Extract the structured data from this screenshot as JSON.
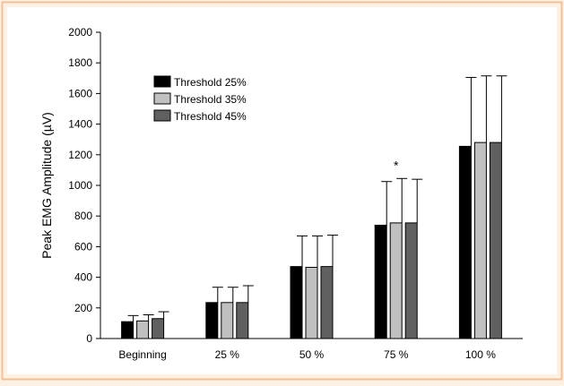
{
  "chart_data": {
    "type": "bar",
    "title": "",
    "xlabel": "",
    "ylabel": "Peak EMG Amplitude (µV)",
    "categories": [
      "Beginning",
      "25 %",
      "50 %",
      "75 %",
      "100 %"
    ],
    "ylim": [
      0,
      2000
    ],
    "yticks": [
      0,
      200,
      400,
      600,
      800,
      1000,
      1200,
      1400,
      1600,
      1800,
      2000
    ],
    "grid": false,
    "legend_position": "top-left",
    "series": [
      {
        "name": "Threshold 25%",
        "color": "#000000",
        "values": [
          110,
          235,
          470,
          740,
          1255
        ],
        "errors": [
          40,
          100,
          200,
          285,
          450
        ]
      },
      {
        "name": "Threshold 35%",
        "color": "#c0c0c0",
        "values": [
          115,
          235,
          465,
          755,
          1280
        ],
        "errors": [
          40,
          100,
          205,
          290,
          435
        ]
      },
      {
        "name": "Threshold 45%",
        "color": "#606060",
        "values": [
          130,
          235,
          470,
          755,
          1280
        ],
        "errors": [
          45,
          110,
          205,
          285,
          435
        ]
      }
    ],
    "annotations": [
      {
        "text": "*",
        "category": "75 %",
        "series": "Threshold 35%"
      }
    ]
  }
}
